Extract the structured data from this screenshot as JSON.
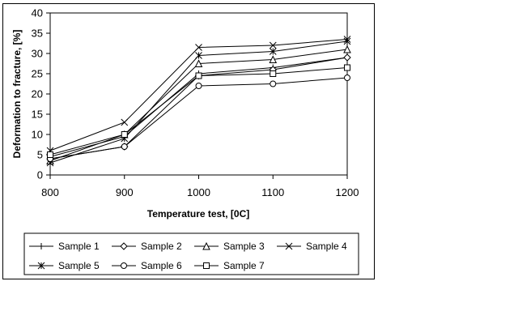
{
  "chart_data": {
    "type": "line",
    "x": [
      800,
      900,
      1000,
      1100,
      1200
    ],
    "xlabel": "Temperature test, [0C]",
    "ylabel": "Deformation to fracture, [%]",
    "ylim": [
      0,
      40
    ],
    "yticks": [
      0,
      5,
      10,
      15,
      20,
      25,
      30,
      35,
      40
    ],
    "xtick_labels": [
      "800",
      "900",
      "1000",
      "1100",
      "1200"
    ],
    "grid": false,
    "legend_position": "bottom",
    "series": [
      {
        "name": "Sample 1",
        "marker": "plus",
        "values": [
          4.5,
          9.5,
          25.0,
          26.5,
          29.0
        ]
      },
      {
        "name": "Sample 2",
        "marker": "diamond",
        "values": [
          4.0,
          7.0,
          24.5,
          26.0,
          29.0
        ]
      },
      {
        "name": "Sample 3",
        "marker": "triangle",
        "values": [
          3.5,
          10.0,
          27.5,
          28.5,
          31.0
        ]
      },
      {
        "name": "Sample 4",
        "marker": "x",
        "values": [
          6.0,
          13.0,
          31.5,
          32.0,
          33.5
        ]
      },
      {
        "name": "Sample 5",
        "marker": "star",
        "values": [
          3.0,
          9.0,
          29.5,
          30.5,
          33.0
        ]
      },
      {
        "name": "Sample 6",
        "marker": "circle",
        "values": [
          4.0,
          7.0,
          22.0,
          22.5,
          24.0
        ]
      },
      {
        "name": "Sample 7",
        "marker": "square",
        "values": [
          5.0,
          10.0,
          24.5,
          25.0,
          26.5
        ]
      }
    ]
  }
}
